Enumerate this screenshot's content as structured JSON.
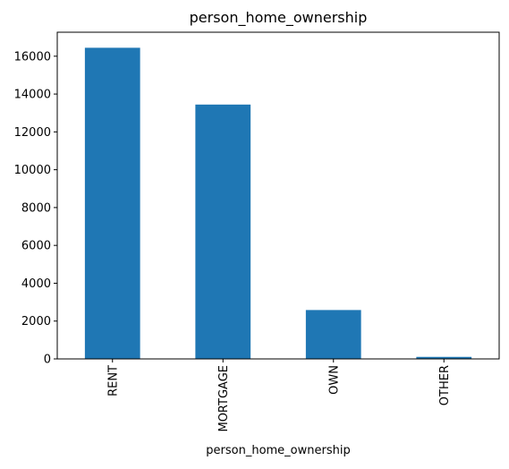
{
  "chart_data": {
    "type": "bar",
    "title": "person_home_ownership",
    "xlabel": "person_home_ownership",
    "ylabel": "",
    "categories": [
      "RENT",
      "MORTGAGE",
      "OWN",
      "OTHER"
    ],
    "values": [
      16446,
      13444,
      2584,
      107
    ],
    "ylim": [
      0,
      17268
    ],
    "yticks": [
      0,
      2000,
      4000,
      6000,
      8000,
      10000,
      12000,
      14000,
      16000
    ],
    "ytick_labels": [
      "0",
      "2000",
      "4000",
      "6000",
      "8000",
      "10000",
      "12000",
      "14000",
      "16000"
    ],
    "grid": false,
    "legend": "none",
    "bar_color": "#1f77b4"
  }
}
